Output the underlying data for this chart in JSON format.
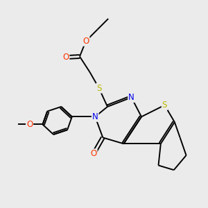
{
  "background_color": "#ebebeb",
  "bond_color": "#000000",
  "atom_colors": {
    "S": "#b8b800",
    "N": "#0000ee",
    "O": "#ff3300",
    "C": "#000000"
  },
  "figsize": [
    3.0,
    3.0
  ],
  "dpi": 100,
  "lw": 1.4,
  "fs": 8.5
}
